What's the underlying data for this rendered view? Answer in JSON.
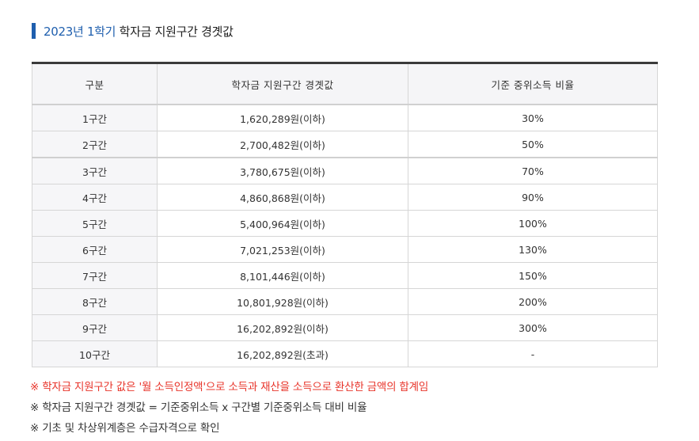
{
  "title": {
    "accent": "2023년 1학기",
    "main": "학자금 지원구간 경곗값"
  },
  "table": {
    "headers": [
      "구분",
      "학자금 지원구간 경곗값",
      "기준 중위소득 비율"
    ],
    "rows": [
      {
        "band": "1구간",
        "value": "1,620,289원(이하)",
        "ratio": "30%"
      },
      {
        "band": "2구간",
        "value": "2,700,482원(이하)",
        "ratio": "50%"
      },
      {
        "band": "3구간",
        "value": "3,780,675원(이하)",
        "ratio": "70%"
      },
      {
        "band": "4구간",
        "value": "4,860,868원(이하)",
        "ratio": "90%"
      },
      {
        "band": "5구간",
        "value": "5,400,964원(이하)",
        "ratio": "100%"
      },
      {
        "band": "6구간",
        "value": "7,021,253원(이하)",
        "ratio": "130%"
      },
      {
        "band": "7구간",
        "value": "8,101,446원(이하)",
        "ratio": "150%"
      },
      {
        "band": "8구간",
        "value": "10,801,928원(이하)",
        "ratio": "200%"
      },
      {
        "band": "9구간",
        "value": "16,202,892원(이하)",
        "ratio": "300%"
      },
      {
        "band": "10구간",
        "value": "16,202,892원(초과)",
        "ratio": "-"
      }
    ]
  },
  "notes": [
    "※ 학자금 지원구간 값은 '월 소득인정액'으로 소득과 재산을 소득으로 환산한 금액의 합계임",
    "※ 학자금 지원구간 경곗값 = 기준중위소득 x 구간별 기준중위소득 대비 비율",
    "※ 기초 및 차상위계층은 수급자격으로 확인"
  ],
  "colors": {
    "accent": "#1f5fae",
    "note_red": "#e8342a",
    "header_bg": "#f5f5f7",
    "header_top_border": "#3a3a3a"
  }
}
